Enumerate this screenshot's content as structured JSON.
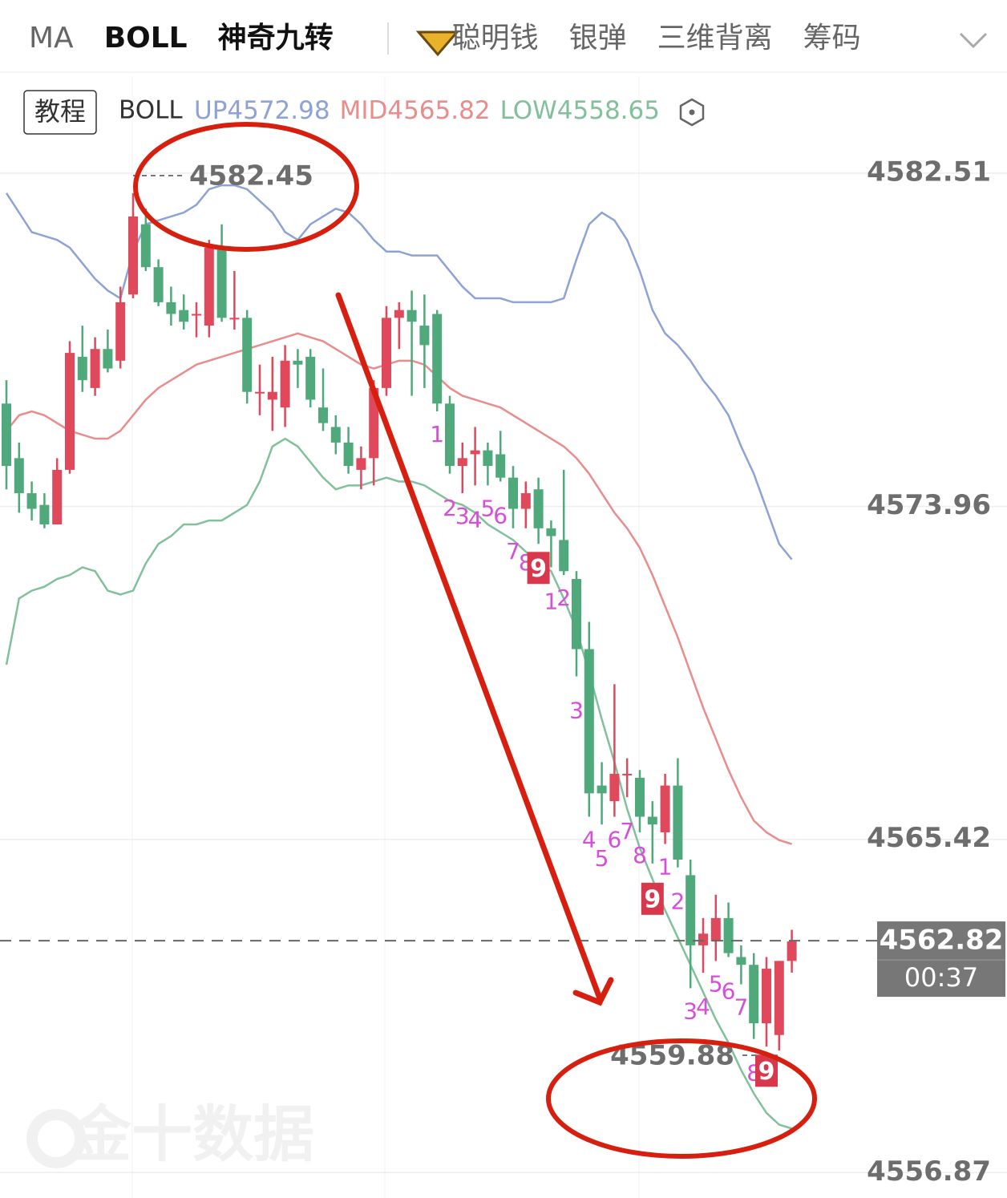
{
  "tabs": [
    {
      "label": "MA",
      "active": false
    },
    {
      "label": "BOLL",
      "active": true
    },
    {
      "label": "神奇九转",
      "active": true
    },
    {
      "label": "聪明钱",
      "active": false
    },
    {
      "label": "银弹",
      "active": false
    },
    {
      "label": "三维背离",
      "active": false
    },
    {
      "label": "筹码",
      "active": false
    }
  ],
  "chart_data": {
    "type": "candlestick",
    "tutorial_button": "教程",
    "indicator": "BOLL",
    "watermark": "金十数据",
    "up_color": "#e0485b",
    "down_color": "#4fa97b",
    "ylim": [
      4556.3,
      4585.0
    ],
    "yticks": [
      4582.51,
      4573.96,
      4565.42,
      4556.87
    ],
    "grid": true,
    "ohlc": [
      [
        4576.6,
        4577.2,
        4574.4,
        4575.0
      ],
      [
        4575.2,
        4575.6,
        4573.8,
        4574.3
      ],
      [
        4574.3,
        4574.6,
        4573.6,
        4573.9
      ],
      [
        4574.0,
        4574.3,
        4573.4,
        4573.5
      ],
      [
        4573.5,
        4575.2,
        4573.5,
        4574.9
      ],
      [
        4574.9,
        4578.2,
        4574.8,
        4577.9
      ],
      [
        4577.8,
        4578.6,
        4576.9,
        4577.2
      ],
      [
        4577.0,
        4578.3,
        4576.8,
        4578.0
      ],
      [
        4578.0,
        4578.5,
        4577.4,
        4577.5
      ],
      [
        4577.7,
        4579.6,
        4577.5,
        4579.2
      ],
      [
        4579.4,
        4582.0,
        4579.3,
        4581.4
      ],
      [
        4581.2,
        4581.6,
        4580.0,
        4580.1
      ],
      [
        4580.1,
        4580.3,
        4579.1,
        4579.2
      ],
      [
        4579.2,
        4579.6,
        4578.6,
        4578.9
      ],
      [
        4579.0,
        4579.4,
        4578.5,
        4578.7
      ],
      [
        4578.9,
        4579.2,
        4578.3,
        4578.9
      ],
      [
        4578.6,
        4580.8,
        4578.3,
        4580.6
      ],
      [
        4580.6,
        4581.2,
        4578.7,
        4578.8
      ],
      [
        4578.8,
        4580.0,
        4578.5,
        4578.8
      ],
      [
        4578.8,
        4579.0,
        4576.6,
        4576.9
      ],
      [
        4576.9,
        4577.6,
        4576.3,
        4576.9
      ],
      [
        4576.7,
        4577.8,
        4575.9,
        4576.9
      ],
      [
        4576.5,
        4578.1,
        4576.0,
        4577.7
      ],
      [
        4577.7,
        4578.0,
        4577.0,
        4577.6
      ],
      [
        4577.8,
        4578.0,
        4576.5,
        4576.7
      ],
      [
        4576.5,
        4577.5,
        4575.9,
        4576.1
      ],
      [
        4576.0,
        4576.3,
        4575.3,
        4575.6
      ],
      [
        4575.6,
        4576.0,
        4574.8,
        4575.0
      ],
      [
        4574.9,
        4575.5,
        4574.4,
        4575.2
      ],
      [
        4575.2,
        4577.2,
        4574.5,
        4577.0
      ],
      [
        4577.0,
        4579.1,
        4576.8,
        4578.8
      ],
      [
        4578.8,
        4579.2,
        4578.0,
        4579.0
      ],
      [
        4579.0,
        4579.5,
        4576.8,
        4578.7
      ],
      [
        4578.6,
        4579.4,
        4577.0,
        4578.1
      ],
      [
        4578.9,
        4579.0,
        4576.4,
        4576.6
      ],
      [
        4576.6,
        4576.8,
        4574.8,
        4575.0
      ],
      [
        4575.0,
        4575.6,
        4574.3,
        4575.2
      ],
      [
        4575.3,
        4576.0,
        4574.5,
        4575.4
      ],
      [
        4575.4,
        4575.6,
        4574.5,
        4575.0
      ],
      [
        4575.3,
        4575.9,
        4574.6,
        4574.7
      ],
      [
        4574.7,
        4575.0,
        4573.4,
        4573.9
      ],
      [
        4573.9,
        4574.6,
        4573.4,
        4574.3
      ],
      [
        4574.4,
        4574.7,
        4573.0,
        4573.4
      ],
      [
        4573.4,
        4573.6,
        4572.4,
        4573.2
      ],
      [
        4573.1,
        4574.9,
        4572.2,
        4572.3
      ],
      [
        4572.1,
        4572.3,
        4569.6,
        4570.3
      ],
      [
        4570.3,
        4571.0,
        4566.0,
        4566.6
      ],
      [
        4566.8,
        4567.4,
        4565.8,
        4566.6
      ],
      [
        4566.4,
        4569.4,
        4566.0,
        4567.1
      ],
      [
        4567.1,
        4567.5,
        4566.5,
        4567.1
      ],
      [
        4567.0,
        4567.2,
        4565.6,
        4566.0
      ],
      [
        4566.0,
        4566.4,
        4564.8,
        4565.8
      ],
      [
        4565.6,
        4567.1,
        4565.3,
        4566.8
      ],
      [
        4566.8,
        4567.5,
        4564.7,
        4564.9
      ],
      [
        4564.5,
        4564.9,
        4561.6,
        4562.7
      ],
      [
        4562.7,
        4563.4,
        4562.0,
        4563.0
      ],
      [
        4562.8,
        4564.0,
        4562.3,
        4563.4
      ],
      [
        4563.4,
        4563.8,
        4562.4,
        4562.5
      ],
      [
        4562.4,
        4562.7,
        4561.7,
        4562.2
      ],
      [
        4562.2,
        4562.5,
        4560.3,
        4560.7
      ],
      [
        4560.7,
        4562.4,
        4560.1,
        4562.1
      ],
      [
        4560.4,
        4562.3,
        4560.0,
        4562.3
      ],
      [
        4562.3,
        4563.1,
        4562.0,
        4562.8
      ]
    ],
    "bands": [
      {
        "name": "UP",
        "last": 4572.98,
        "color": "#8ea2d6",
        "values": [
          4582.0,
          4581.5,
          4581.0,
          4580.9,
          4580.8,
          4580.6,
          4580.2,
          4579.8,
          4579.5,
          4579.3,
          4580.5,
          4581.2,
          4581.3,
          4581.4,
          4581.5,
          4581.7,
          4582.1,
          4582.2,
          4582.2,
          4582.1,
          4581.8,
          4581.5,
          4581.0,
          4580.8,
          4581.2,
          4581.4,
          4581.6,
          4581.5,
          4581.2,
          4580.8,
          4580.5,
          4580.5,
          4580.4,
          4580.4,
          4580.4,
          4580.0,
          4579.6,
          4579.3,
          4579.3,
          4579.3,
          4579.2,
          4579.2,
          4579.2,
          4579.2,
          4579.3,
          4580.3,
          4581.2,
          4581.5,
          4581.3,
          4580.8,
          4580.0,
          4579.0,
          4578.4,
          4578.1,
          4577.7,
          4577.2,
          4576.8,
          4576.3,
          4575.5,
          4574.8,
          4573.9,
          4573.0,
          4572.6
        ]
      },
      {
        "name": "MID",
        "last": 4565.82,
        "color": "#e88c8c",
        "values": [
          4575.9,
          4576.3,
          4576.4,
          4576.3,
          4576.1,
          4575.9,
          4575.8,
          4575.7,
          4575.7,
          4575.9,
          4576.3,
          4576.7,
          4577.0,
          4577.2,
          4577.4,
          4577.6,
          4577.7,
          4577.8,
          4577.9,
          4578.0,
          4578.1,
          4578.2,
          4578.3,
          4578.4,
          4578.3,
          4578.2,
          4578.0,
          4577.8,
          4577.6,
          4577.5,
          4577.6,
          4577.7,
          4577.7,
          4577.6,
          4577.3,
          4577.0,
          4576.8,
          4576.7,
          4576.6,
          4576.5,
          4576.3,
          4576.1,
          4575.9,
          4575.7,
          4575.5,
          4575.2,
          4574.8,
          4574.3,
          4573.8,
          4573.4,
          4572.9,
          4572.2,
          4571.4,
          4570.6,
          4569.7,
          4568.8,
          4568.0,
          4567.2,
          4566.5,
          4565.9,
          4565.6,
          4565.4,
          4565.3
        ]
      },
      {
        "name": "LOW",
        "last": 4558.65,
        "color": "#82c09c",
        "values": [
          4569.9,
          4571.6,
          4571.8,
          4571.9,
          4572.1,
          4572.2,
          4572.4,
          4572.3,
          4571.8,
          4571.7,
          4571.8,
          4572.5,
          4573.0,
          4573.2,
          4573.5,
          4573.5,
          4573.6,
          4573.6,
          4573.8,
          4574.0,
          4574.6,
          4575.5,
          4575.7,
          4575.5,
          4575.1,
          4574.7,
          4574.4,
          4574.5,
          4574.5,
          4574.6,
          4574.7,
          4574.6,
          4574.6,
          4574.5,
          4574.3,
          4574.1,
          4574.0,
          4573.8,
          4573.5,
          4573.3,
          4573.1,
          4572.8,
          4572.5,
          4572.3,
          4571.6,
          4570.8,
          4569.7,
          4568.5,
          4567.4,
          4566.2,
          4565.2,
          4564.4,
          4563.6,
          4562.9,
          4562.2,
          4561.5,
          4560.8,
          4560.2,
          4559.5,
          4558.9,
          4558.4,
          4558.1,
          4558.0
        ]
      }
    ],
    "td_labels": [
      {
        "index": 34,
        "label": "1",
        "boxed": false
      },
      {
        "index": 35,
        "label": "2",
        "boxed": false
      },
      {
        "index": 36,
        "label": "3",
        "boxed": false
      },
      {
        "index": 37,
        "label": "4",
        "boxed": false
      },
      {
        "index": 38,
        "label": "5",
        "boxed": false
      },
      {
        "index": 39,
        "label": "6",
        "boxed": false
      },
      {
        "index": 40,
        "label": "7",
        "boxed": false
      },
      {
        "index": 41,
        "label": "8",
        "boxed": false
      },
      {
        "index": 42,
        "label": "9",
        "boxed": true
      },
      {
        "index": 43,
        "label": "1",
        "boxed": false
      },
      {
        "index": 44,
        "label": "2",
        "boxed": false
      },
      {
        "index": 45,
        "label": "3",
        "boxed": false
      },
      {
        "index": 46,
        "label": "4",
        "boxed": false
      },
      {
        "index": 47,
        "label": "5",
        "boxed": false
      },
      {
        "index": 48,
        "label": "6",
        "boxed": false
      },
      {
        "index": 49,
        "label": "7",
        "boxed": false
      },
      {
        "index": 50,
        "label": "8",
        "boxed": false
      },
      {
        "index": 51,
        "label": "9",
        "boxed": true
      },
      {
        "index": 52,
        "label": "1",
        "boxed": false
      },
      {
        "index": 53,
        "label": "2",
        "boxed": false
      },
      {
        "index": 54,
        "label": "3",
        "boxed": false
      },
      {
        "index": 55,
        "label": "4",
        "boxed": false
      },
      {
        "index": 56,
        "label": "5",
        "boxed": false
      },
      {
        "index": 57,
        "label": "6",
        "boxed": false
      },
      {
        "index": 58,
        "label": "7",
        "boxed": false
      },
      {
        "index": 59,
        "label": "8",
        "boxed": false
      },
      {
        "index": 60,
        "label": "9",
        "boxed": true
      }
    ],
    "high_marker": {
      "index": 10,
      "value": 4582.45
    },
    "low_marker": {
      "index": 60,
      "value": 4559.88
    },
    "current_price": 4562.82,
    "countdown": "00:37"
  }
}
